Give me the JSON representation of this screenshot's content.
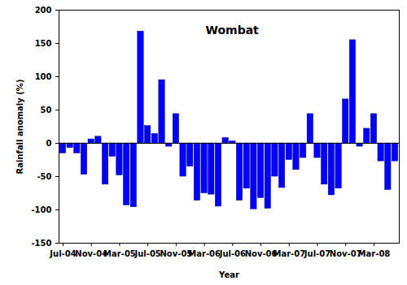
{
  "chart_data": {
    "type": "bar",
    "title": "Wombat",
    "x_label": "Year",
    "y_label": "Rainfall anomaly (%)",
    "categories": [
      "Jul-04",
      null,
      null,
      null,
      "Nov-04",
      null,
      null,
      null,
      "Mar-05",
      null,
      null,
      null,
      "Jul-05",
      null,
      null,
      null,
      "Nov-05",
      null,
      null,
      null,
      "Mar-06",
      null,
      null,
      null,
      "Jul-06",
      null,
      null,
      null,
      "Nov-06",
      null,
      null,
      null,
      "Mar-07",
      null,
      null,
      null,
      "Jul-07",
      null,
      null,
      null,
      "Nov-07",
      null,
      null,
      null,
      "Mar-08",
      null,
      null,
      null
    ],
    "values": [
      -15,
      -7,
      -15,
      -47,
      6,
      10,
      -62,
      -20,
      -48,
      -93,
      -96,
      168,
      26,
      14,
      95,
      -5,
      44,
      -50,
      -35,
      -86,
      -75,
      -77,
      -95,
      8,
      3,
      -86,
      -68,
      -99,
      -82,
      -98,
      -50,
      -67,
      -25,
      -40,
      -22,
      44,
      -22,
      -62,
      -78,
      -68,
      66,
      155,
      -5,
      22,
      44,
      -27,
      -70,
      -27
    ],
    "color": "#0000ff",
    "ylim": [
      -150,
      200
    ],
    "yticks": [
      -150,
      -100,
      -50,
      0,
      50,
      100,
      150,
      200
    ],
    "grid": false
  }
}
